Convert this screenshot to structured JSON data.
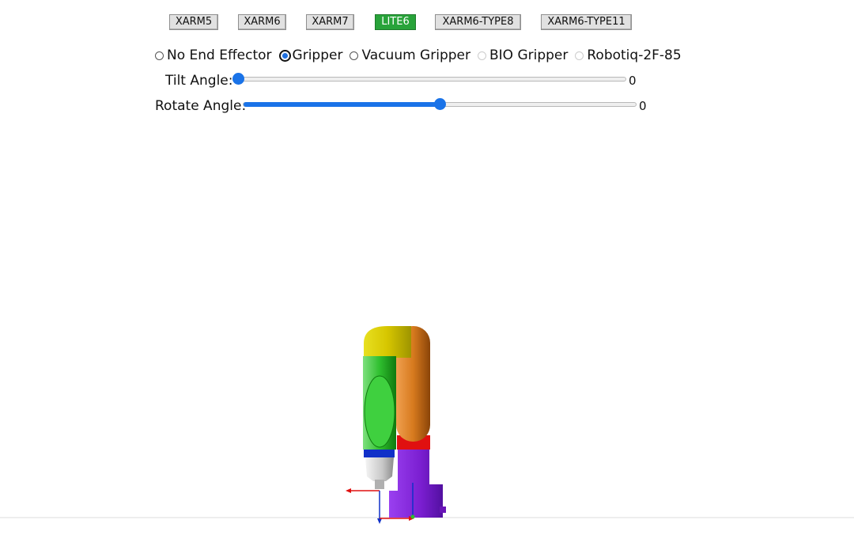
{
  "models": [
    {
      "label": "XARM5",
      "active": false
    },
    {
      "label": "XARM6",
      "active": false
    },
    {
      "label": "XARM7",
      "active": false
    },
    {
      "label": "LITE6",
      "active": true
    },
    {
      "label": "XARM6-TYPE8",
      "active": false
    },
    {
      "label": "XARM6-TYPE11",
      "active": false
    }
  ],
  "end_effectors": [
    {
      "label": "No End Effector",
      "state": "unchecked"
    },
    {
      "label": "Gripper",
      "state": "checked"
    },
    {
      "label": "Vacuum Gripper",
      "state": "unchecked"
    },
    {
      "label": "BIO Gripper",
      "state": "disabled"
    },
    {
      "label": "Robotiq-2F-85",
      "state": "disabled"
    }
  ],
  "sliders": {
    "tilt": {
      "label": "Tilt Angle:",
      "value": "0",
      "fill_fraction": 0.0
    },
    "rotate": {
      "label": "Rotate Angle:",
      "value": "0",
      "fill_fraction": 0.5
    }
  },
  "colors": {
    "active_button": "#28a33a",
    "slider_accent": "#1a73e8",
    "link_yellow": "#e0d400",
    "link_green": "#2fbf2f",
    "link_orange": "#d77a1e",
    "link_red": "#e01010",
    "base_purple": "#7a1ed0",
    "joint_blue": "#1030c8"
  }
}
